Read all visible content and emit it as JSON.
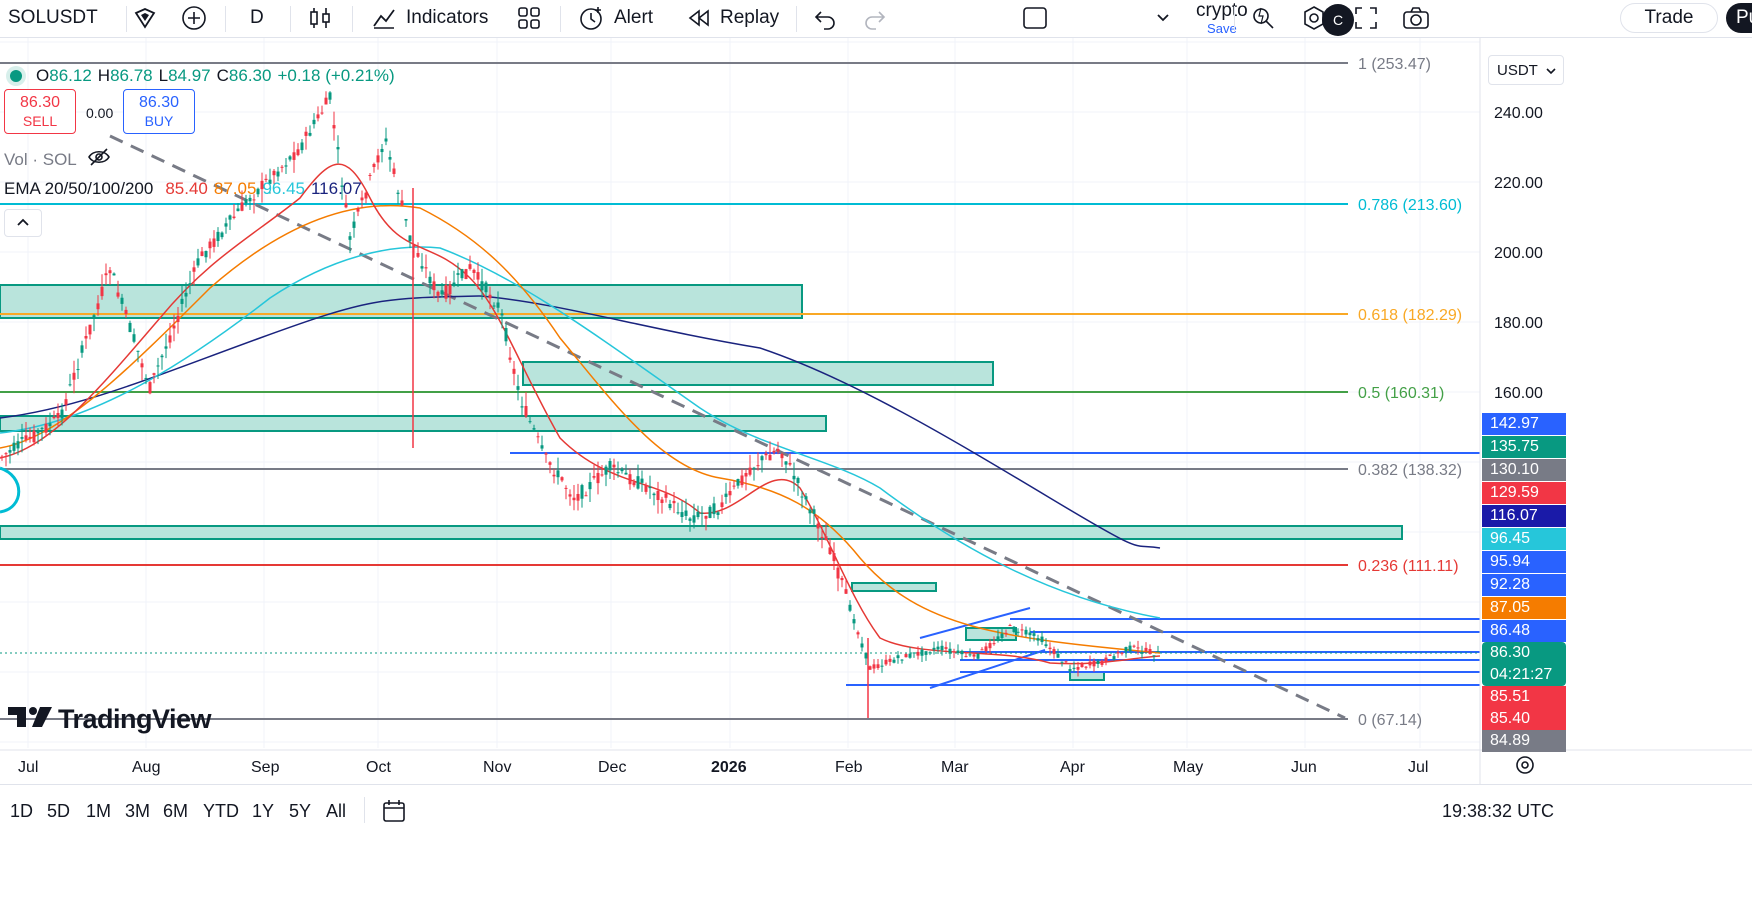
{
  "toolbar": {
    "symbol": "SOLUSDT",
    "interval": "D",
    "indicators_label": "Indicators",
    "alert_label": "Alert",
    "replay_label": "Replay",
    "layout_name": "crypto",
    "layout_save": "Save",
    "avatar_letter": "C",
    "trade_label": "Trade",
    "publish_label": "Pu"
  },
  "legend": {
    "o_key": "O",
    "o_val": "86.12",
    "h_key": "H",
    "h_val": "86.78",
    "l_key": "L",
    "l_val": "84.97",
    "c_key": "C",
    "c_val": "86.30",
    "change": "+0.18 (+0.21%)",
    "sell_price": "86.30",
    "sell_label": "SELL",
    "spread": "0.00",
    "buy_price": "86.30",
    "buy_label": "BUY",
    "vol_label": "Vol · SOL",
    "ema_label": "EMA 20/50/100/200",
    "ema_values": [
      "85.40",
      "87.05",
      "96.45",
      "116.07"
    ],
    "ema_colors": [
      "#e53935",
      "#f57c00",
      "#26c6da",
      "#1a237e"
    ]
  },
  "currency": "USDT",
  "brand": "TradingView",
  "price_axis_labels": [
    "240.00",
    "220.00",
    "200.00",
    "180.00",
    "160.00"
  ],
  "fib_labels": [
    "1 (253.47)",
    "0.786 (213.60)",
    "0.618 (182.29)",
    "0.5 (160.31)",
    "0.382 (138.32)",
    "0.236 (111.11)",
    "0 (67.14)"
  ],
  "fib_colors": [
    "#787b86",
    "#00bcd4",
    "#f9a825",
    "#43a047",
    "#787b86",
    "#e53935",
    "#787b86"
  ],
  "price_tags": [
    {
      "value": "142.97",
      "bg": "#2962ff"
    },
    {
      "value": "135.75",
      "bg": "#089981"
    },
    {
      "value": "130.10",
      "bg": "#787b86"
    },
    {
      "value": "129.59",
      "bg": "#f23645"
    },
    {
      "value": "116.07",
      "bg": "#1a1aa8"
    },
    {
      "value": "96.45",
      "bg": "#26c6da"
    },
    {
      "value": "95.94",
      "bg": "#2962ff"
    },
    {
      "value": "92.28",
      "bg": "#2962ff"
    },
    {
      "value": "87.05",
      "bg": "#f57c00"
    },
    {
      "value": "86.48",
      "bg": "#2962ff"
    },
    {
      "value": "86.30",
      "bg": "#089981"
    },
    {
      "value": "04:21:27",
      "bg": "#089981"
    },
    {
      "value": "85.51",
      "bg": "#f23645"
    },
    {
      "value": "85.40",
      "bg": "#f23645"
    },
    {
      "value": "84.89",
      "bg": "#787b86"
    }
  ],
  "time_axis_labels": [
    "Jul",
    "Aug",
    "Sep",
    "Oct",
    "Nov",
    "Dec",
    "2026",
    "Feb",
    "Mar",
    "Apr",
    "May",
    "Jun",
    "Jul"
  ],
  "ranges": [
    "1D",
    "5D",
    "1M",
    "3M",
    "6M",
    "YTD",
    "1Y",
    "5Y",
    "All"
  ],
  "clock": "19:38:32 UTC"
}
